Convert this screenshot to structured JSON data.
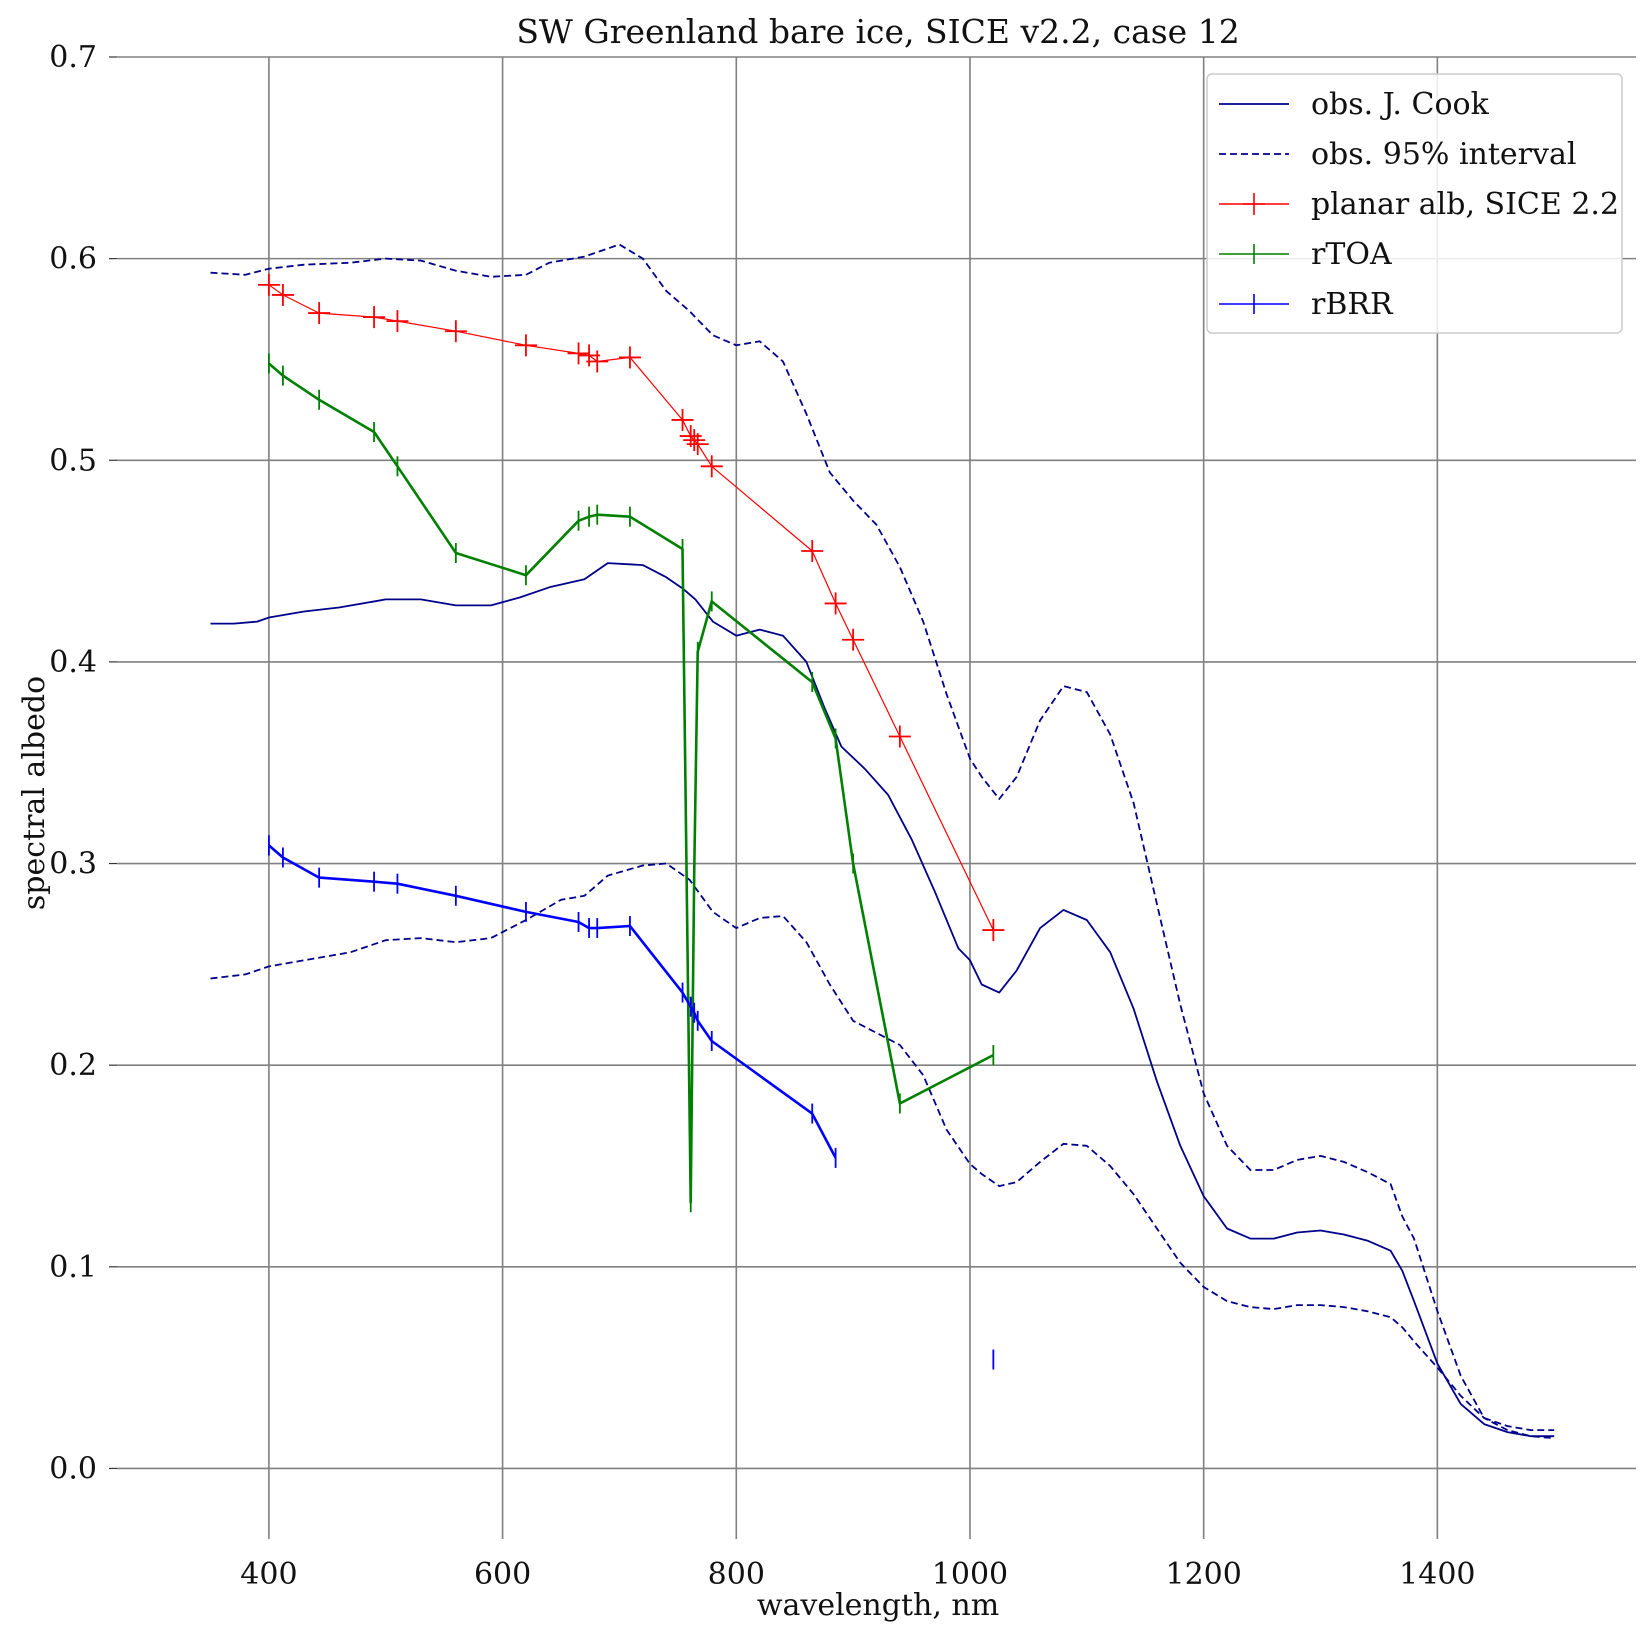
{
  "chart_data": {
    "type": "line",
    "title": "SW Greenland bare ice, SICE v2.2, case 12",
    "xlabel": "wavelength, nm",
    "ylabel": "spectral albedo",
    "xlim": [
      270,
      1570
    ],
    "ylim": [
      -0.035,
      0.7
    ],
    "xticks": [
      400,
      600,
      800,
      1000,
      1200,
      1400
    ],
    "yticks": [
      0.0,
      0.1,
      0.2,
      0.3,
      0.4,
      0.5,
      0.6,
      0.7
    ],
    "xtick_labels": [
      "400",
      "600",
      "800",
      "1000",
      "1200",
      "1400"
    ],
    "ytick_labels": [
      "0.0",
      "0.1",
      "0.2",
      "0.3",
      "0.4",
      "0.5",
      "0.6",
      "0.7"
    ],
    "grid": true,
    "legend_position": "top-right",
    "colors": {
      "obs": "#00008b",
      "planar": "#ff0000",
      "rtoa": "#008000",
      "rbrr": "#0000ff",
      "grid": "#808080"
    },
    "series": [
      {
        "name": "obs. J. Cook",
        "style": "solid",
        "color": "#00008b",
        "points": [
          [
            350,
            0.419
          ],
          [
            370,
            0.419
          ],
          [
            390,
            0.42
          ],
          [
            400,
            0.422
          ],
          [
            430,
            0.425
          ],
          [
            460,
            0.427
          ],
          [
            500,
            0.431
          ],
          [
            530,
            0.431
          ],
          [
            560,
            0.428
          ],
          [
            590,
            0.428
          ],
          [
            615,
            0.432
          ],
          [
            640,
            0.437
          ],
          [
            670,
            0.441
          ],
          [
            690,
            0.449
          ],
          [
            720,
            0.448
          ],
          [
            740,
            0.442
          ],
          [
            755,
            0.436
          ],
          [
            765,
            0.431
          ],
          [
            780,
            0.42
          ],
          [
            800,
            0.413
          ],
          [
            820,
            0.416
          ],
          [
            840,
            0.413
          ],
          [
            860,
            0.4
          ],
          [
            875,
            0.378
          ],
          [
            890,
            0.358
          ],
          [
            910,
            0.347
          ],
          [
            930,
            0.334
          ],
          [
            950,
            0.312
          ],
          [
            970,
            0.286
          ],
          [
            990,
            0.258
          ],
          [
            1000,
            0.252
          ],
          [
            1010,
            0.24
          ],
          [
            1025,
            0.236
          ],
          [
            1040,
            0.247
          ],
          [
            1060,
            0.268
          ],
          [
            1080,
            0.277
          ],
          [
            1100,
            0.272
          ],
          [
            1120,
            0.256
          ],
          [
            1140,
            0.228
          ],
          [
            1160,
            0.192
          ],
          [
            1180,
            0.16
          ],
          [
            1200,
            0.135
          ],
          [
            1220,
            0.119
          ],
          [
            1240,
            0.114
          ],
          [
            1260,
            0.114
          ],
          [
            1280,
            0.117
          ],
          [
            1300,
            0.118
          ],
          [
            1320,
            0.116
          ],
          [
            1340,
            0.113
          ],
          [
            1360,
            0.108
          ],
          [
            1370,
            0.098
          ],
          [
            1380,
            0.083
          ],
          [
            1400,
            0.052
          ],
          [
            1420,
            0.032
          ],
          [
            1440,
            0.022
          ],
          [
            1460,
            0.018
          ],
          [
            1480,
            0.016
          ],
          [
            1500,
            0.016
          ]
        ]
      },
      {
        "name": "obs. 95% interval",
        "style": "dashed",
        "color": "#00008b",
        "points": [
          [
            350,
            0.593
          ],
          [
            380,
            0.592
          ],
          [
            400,
            0.595
          ],
          [
            430,
            0.597
          ],
          [
            470,
            0.598
          ],
          [
            500,
            0.6
          ],
          [
            530,
            0.599
          ],
          [
            560,
            0.594
          ],
          [
            590,
            0.591
          ],
          [
            620,
            0.592
          ],
          [
            640,
            0.598
          ],
          [
            670,
            0.601
          ],
          [
            700,
            0.607
          ],
          [
            720,
            0.6
          ],
          [
            740,
            0.584
          ],
          [
            760,
            0.574
          ],
          [
            780,
            0.562
          ],
          [
            800,
            0.557
          ],
          [
            820,
            0.559
          ],
          [
            840,
            0.549
          ],
          [
            860,
            0.523
          ],
          [
            880,
            0.494
          ],
          [
            900,
            0.48
          ],
          [
            920,
            0.468
          ],
          [
            940,
            0.447
          ],
          [
            960,
            0.42
          ],
          [
            980,
            0.384
          ],
          [
            1000,
            0.352
          ],
          [
            1010,
            0.343
          ],
          [
            1025,
            0.332
          ],
          [
            1040,
            0.343
          ],
          [
            1060,
            0.371
          ],
          [
            1080,
            0.388
          ],
          [
            1100,
            0.385
          ],
          [
            1120,
            0.364
          ],
          [
            1140,
            0.33
          ],
          [
            1160,
            0.28
          ],
          [
            1180,
            0.23
          ],
          [
            1200,
            0.186
          ],
          [
            1220,
            0.16
          ],
          [
            1240,
            0.148
          ],
          [
            1260,
            0.148
          ],
          [
            1280,
            0.153
          ],
          [
            1300,
            0.155
          ],
          [
            1320,
            0.152
          ],
          [
            1340,
            0.147
          ],
          [
            1360,
            0.141
          ],
          [
            1370,
            0.125
          ],
          [
            1380,
            0.114
          ],
          [
            1400,
            0.078
          ],
          [
            1420,
            0.046
          ],
          [
            1440,
            0.025
          ],
          [
            1460,
            0.021
          ],
          [
            1480,
            0.019
          ],
          [
            1500,
            0.019
          ]
        ]
      },
      {
        "name": "obs. 95% interval (lower)",
        "style": "dashed",
        "color": "#00008b",
        "points": [
          [
            350,
            0.243
          ],
          [
            380,
            0.245
          ],
          [
            400,
            0.249
          ],
          [
            430,
            0.252
          ],
          [
            470,
            0.256
          ],
          [
            500,
            0.262
          ],
          [
            530,
            0.263
          ],
          [
            560,
            0.261
          ],
          [
            590,
            0.263
          ],
          [
            620,
            0.272
          ],
          [
            650,
            0.282
          ],
          [
            670,
            0.284
          ],
          [
            690,
            0.294
          ],
          [
            720,
            0.299
          ],
          [
            740,
            0.3
          ],
          [
            760,
            0.292
          ],
          [
            780,
            0.276
          ],
          [
            800,
            0.268
          ],
          [
            820,
            0.273
          ],
          [
            840,
            0.274
          ],
          [
            860,
            0.261
          ],
          [
            880,
            0.24
          ],
          [
            900,
            0.222
          ],
          [
            920,
            0.216
          ],
          [
            940,
            0.21
          ],
          [
            960,
            0.195
          ],
          [
            980,
            0.168
          ],
          [
            1000,
            0.151
          ],
          [
            1010,
            0.146
          ],
          [
            1025,
            0.14
          ],
          [
            1040,
            0.142
          ],
          [
            1060,
            0.152
          ],
          [
            1080,
            0.161
          ],
          [
            1100,
            0.16
          ],
          [
            1120,
            0.15
          ],
          [
            1140,
            0.136
          ],
          [
            1160,
            0.119
          ],
          [
            1180,
            0.102
          ],
          [
            1200,
            0.09
          ],
          [
            1220,
            0.083
          ],
          [
            1240,
            0.08
          ],
          [
            1260,
            0.079
          ],
          [
            1280,
            0.081
          ],
          [
            1300,
            0.081
          ],
          [
            1320,
            0.08
          ],
          [
            1340,
            0.078
          ],
          [
            1360,
            0.075
          ],
          [
            1370,
            0.07
          ],
          [
            1380,
            0.063
          ],
          [
            1400,
            0.05
          ],
          [
            1420,
            0.036
          ],
          [
            1440,
            0.025
          ],
          [
            1460,
            0.019
          ],
          [
            1480,
            0.016
          ],
          [
            1500,
            0.015
          ]
        ]
      },
      {
        "name": "planar alb, SICE 2.2",
        "style": "solid",
        "marker": "plus",
        "color": "#ff0000",
        "points": [
          [
            400,
            0.587
          ],
          [
            412,
            0.582
          ],
          [
            443,
            0.573
          ],
          [
            490,
            0.571
          ],
          [
            510,
            0.569
          ],
          [
            560,
            0.564
          ],
          [
            620,
            0.557
          ],
          [
            665,
            0.553
          ],
          [
            674,
            0.552
          ],
          [
            681,
            0.549
          ],
          [
            709,
            0.551
          ],
          [
            754,
            0.52
          ],
          [
            761,
            0.512
          ],
          [
            764,
            0.51
          ],
          [
            767,
            0.508
          ],
          [
            779,
            0.497
          ],
          [
            865,
            0.455
          ],
          [
            885,
            0.429
          ],
          [
            900,
            0.411
          ],
          [
            940,
            0.363
          ],
          [
            1020,
            0.267
          ]
        ]
      },
      {
        "name": "rTOA",
        "style": "solid",
        "marker": "vline",
        "color": "#008000",
        "points": [
          [
            400,
            0.548
          ],
          [
            412,
            0.542
          ],
          [
            443,
            0.53
          ],
          [
            490,
            0.514
          ],
          [
            510,
            0.497
          ],
          [
            560,
            0.454
          ],
          [
            620,
            0.443
          ],
          [
            665,
            0.47
          ],
          [
            674,
            0.472
          ],
          [
            681,
            0.473
          ],
          [
            709,
            0.472
          ],
          [
            754,
            0.456
          ],
          [
            761,
            0.132
          ],
          [
            764,
            0.295
          ],
          [
            767,
            0.405
          ],
          [
            779,
            0.43
          ],
          [
            865,
            0.39
          ],
          [
            885,
            0.362
          ],
          [
            900,
            0.3
          ],
          [
            940,
            0.181
          ],
          [
            1020,
            0.205
          ]
        ]
      },
      {
        "name": "rBRR",
        "style": "solid",
        "marker": "vline",
        "color": "#0000ff",
        "points": [
          [
            400,
            0.309
          ],
          [
            412,
            0.303
          ],
          [
            443,
            0.293
          ],
          [
            490,
            0.291
          ],
          [
            510,
            0.29
          ],
          [
            560,
            0.284
          ],
          [
            620,
            0.276
          ],
          [
            665,
            0.271
          ],
          [
            674,
            0.268
          ],
          [
            681,
            0.268
          ],
          [
            709,
            0.269
          ],
          [
            754,
            0.236
          ],
          [
            761,
            0.229
          ],
          [
            764,
            0.226
          ],
          [
            767,
            0.222
          ],
          [
            779,
            0.212
          ],
          [
            865,
            0.176
          ],
          [
            885,
            0.154
          ]
        ]
      },
      {
        "name": "rBRR (isolated)",
        "style": "none",
        "marker": "vline",
        "color": "#0000ff",
        "points": [
          [
            1020,
            0.054
          ]
        ]
      }
    ],
    "legend": [
      {
        "label": "obs. J. Cook",
        "style": "solid",
        "color": "#00008b",
        "marker": "none"
      },
      {
        "label": "obs. 95% interval",
        "style": "dashed",
        "color": "#00008b",
        "marker": "none"
      },
      {
        "label": "planar alb, SICE 2.2",
        "style": "solid",
        "color": "#ff0000",
        "marker": "plus"
      },
      {
        "label": "rTOA",
        "style": "solid",
        "color": "#008000",
        "marker": "vline"
      },
      {
        "label": "rBRR",
        "style": "solid",
        "color": "#0000ff",
        "marker": "vline"
      }
    ]
  }
}
